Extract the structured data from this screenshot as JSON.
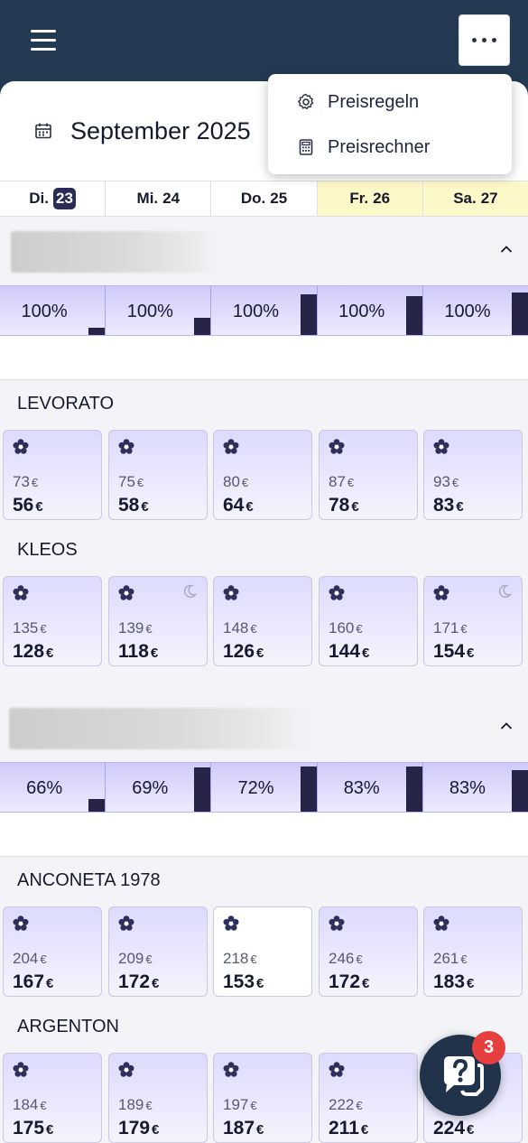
{
  "header": {
    "month": "September 2025",
    "menu": [
      {
        "label": "Preisregeln",
        "icon": "gear-icon"
      },
      {
        "label": "Preisrechner",
        "icon": "calculator-icon"
      }
    ]
  },
  "days": [
    {
      "label": "Di.",
      "num": "23",
      "today": true,
      "weekend": false
    },
    {
      "label": "Mi.",
      "num": "24",
      "today": false,
      "weekend": false
    },
    {
      "label": "Do.",
      "num": "25",
      "today": false,
      "weekend": false
    },
    {
      "label": "Fr.",
      "num": "26",
      "today": false,
      "weekend": true
    },
    {
      "label": "Sa.",
      "num": "27",
      "today": false,
      "weekend": true
    }
  ],
  "groups": [
    {
      "occupancy": [
        {
          "pct": "100%",
          "bar": 0.15
        },
        {
          "pct": "100%",
          "bar": 0.35
        },
        {
          "pct": "100%",
          "bar": 0.83
        },
        {
          "pct": "100%",
          "bar": 0.8
        },
        {
          "pct": "100%",
          "bar": 0.87
        }
      ],
      "rooms": [
        {
          "name": "LEVORATO",
          "tiles": [
            {
              "orig": "73",
              "price": "56",
              "moon": false,
              "white": false
            },
            {
              "orig": "75",
              "price": "58",
              "moon": false,
              "white": false
            },
            {
              "orig": "80",
              "price": "64",
              "moon": false,
              "white": false
            },
            {
              "orig": "87",
              "price": "78",
              "moon": false,
              "white": false
            },
            {
              "orig": "93",
              "price": "83",
              "moon": false,
              "white": false
            }
          ]
        },
        {
          "name": "KLEOS",
          "tiles": [
            {
              "orig": "135",
              "price": "128",
              "moon": false,
              "white": false
            },
            {
              "orig": "139",
              "price": "118",
              "moon": true,
              "white": false
            },
            {
              "orig": "148",
              "price": "126",
              "moon": false,
              "white": false
            },
            {
              "orig": "160",
              "price": "144",
              "moon": false,
              "white": false
            },
            {
              "orig": "171",
              "price": "154",
              "moon": true,
              "white": false
            }
          ]
        }
      ]
    },
    {
      "occupancy": [
        {
          "pct": "66%",
          "bar": 0.25
        },
        {
          "pct": "69%",
          "bar": 0.9
        },
        {
          "pct": "72%",
          "bar": 0.92
        },
        {
          "pct": "83%",
          "bar": 0.93
        },
        {
          "pct": "83%",
          "bar": 0.85
        }
      ],
      "rooms": [
        {
          "name": "ANCONETA 1978",
          "tiles": [
            {
              "orig": "204",
              "price": "167",
              "moon": false,
              "white": false
            },
            {
              "orig": "209",
              "price": "172",
              "moon": false,
              "white": false
            },
            {
              "orig": "218",
              "price": "153",
              "moon": false,
              "white": true
            },
            {
              "orig": "246",
              "price": "172",
              "moon": false,
              "white": false
            },
            {
              "orig": "261",
              "price": "183",
              "moon": false,
              "white": false
            }
          ]
        },
        {
          "name": "ARGENTON",
          "tiles": [
            {
              "orig": "184",
              "price": "175",
              "moon": false,
              "white": false
            },
            {
              "orig": "189",
              "price": "179",
              "moon": false,
              "white": false
            },
            {
              "orig": "197",
              "price": "187",
              "moon": false,
              "white": false
            },
            {
              "orig": "222",
              "price": "211",
              "moon": false,
              "white": false
            },
            {
              "orig": "",
              "price": "224",
              "moon": false,
              "white": false
            }
          ]
        }
      ]
    }
  ],
  "currency": "€",
  "chat": {
    "badge": "3"
  }
}
